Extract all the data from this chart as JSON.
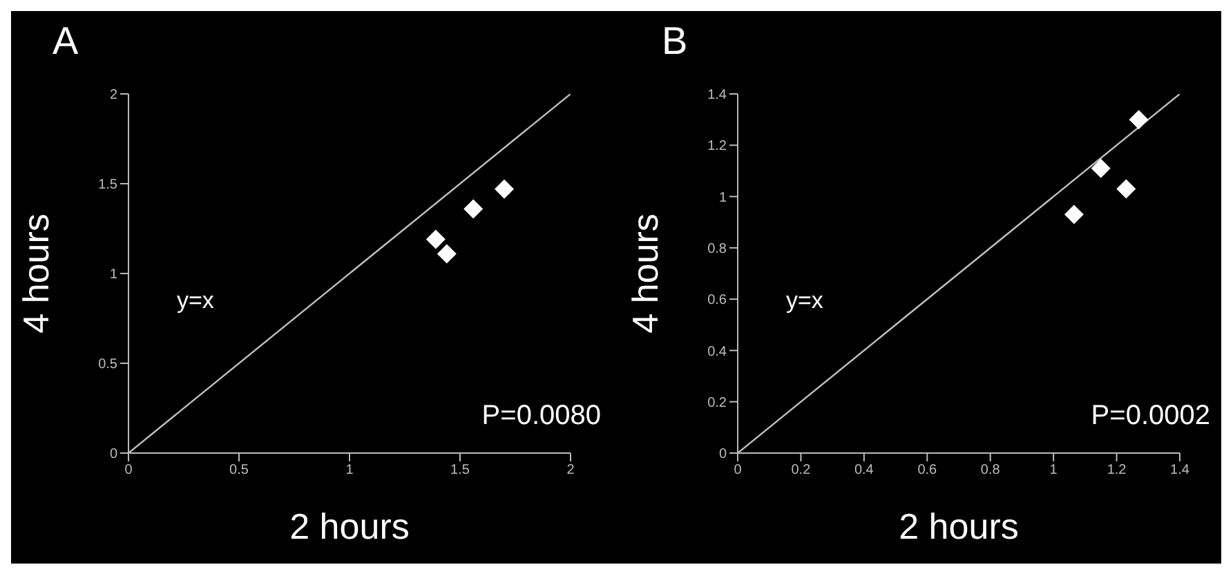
{
  "chart_data": [
    {
      "type": "scatter",
      "title": "A",
      "xlabel": "2 hours",
      "ylabel": "4 hours",
      "grid": false,
      "legend": false,
      "xlim": [
        0,
        2
      ],
      "xticks": [
        0,
        0.5,
        1,
        1.5,
        2
      ],
      "ylim": [
        0,
        2
      ],
      "yticks": [
        0,
        0.5,
        1,
        1.5,
        2
      ],
      "annotations": [
        "y=x",
        "P=0.0080"
      ],
      "series": [
        {
          "color": "#ffffff",
          "marker": "diamond",
          "x": [
            1.39,
            1.44,
            1.56,
            1.7
          ],
          "values": [
            1.19,
            1.11,
            1.36,
            1.47
          ]
        },
        {
          "type": "line",
          "color": "#c0c0c0",
          "x": [
            0,
            2
          ],
          "values": [
            0,
            2
          ]
        }
      ]
    },
    {
      "type": "scatter",
      "title": "B",
      "xlabel": "2 hours",
      "ylabel": "4 hours",
      "grid": false,
      "legend": false,
      "xlim": [
        0,
        1.4
      ],
      "xticks": [
        0,
        0.2,
        0.4,
        0.6,
        0.8,
        1,
        1.2,
        1.4
      ],
      "ylim": [
        0,
        1.4
      ],
      "yticks": [
        0,
        0.2,
        0.4,
        0.6,
        0.8,
        1,
        1.2,
        1.4
      ],
      "annotations": [
        "y=x",
        "P=0.0002"
      ],
      "series": [
        {
          "color": "#ffffff",
          "marker": "diamond",
          "x": [
            1.065,
            1.15,
            1.23,
            1.27
          ],
          "values": [
            0.93,
            1.11,
            1.03,
            1.3
          ]
        },
        {
          "type": "line",
          "color": "#c0c0c0",
          "x": [
            0,
            1.4
          ],
          "values": [
            0,
            1.4
          ]
        }
      ]
    }
  ]
}
